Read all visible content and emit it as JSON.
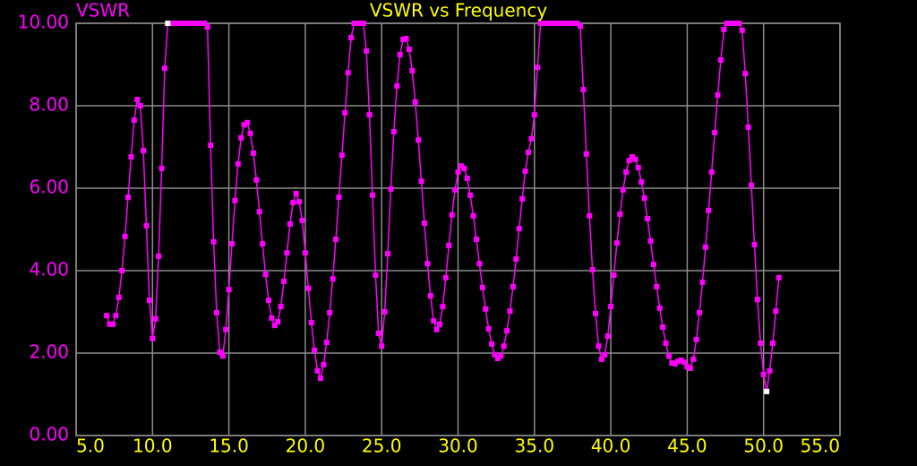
{
  "chart_data": {
    "type": "line",
    "title": "VSWR vs Frequency",
    "y_label": "VSWR",
    "background": "#000000",
    "grid": true,
    "grid_color": "#8c8c8c",
    "title_color": "#ffff00",
    "x_tick_color": "#ffff00",
    "y_tick_color": "#ff00ff",
    "xlim": [
      5,
      55
    ],
    "ylim": [
      0,
      10
    ],
    "xticks": [
      {
        "value": 5,
        "label": "5.0"
      },
      {
        "value": 10,
        "label": "10.0"
      },
      {
        "value": 15,
        "label": "15.0"
      },
      {
        "value": 20,
        "label": "20.0"
      },
      {
        "value": 25,
        "label": "25.0"
      },
      {
        "value": 30,
        "label": "30.0"
      },
      {
        "value": 35,
        "label": "35.0"
      },
      {
        "value": 40,
        "label": "40.0"
      },
      {
        "value": 45,
        "label": "45.0"
      },
      {
        "value": 50,
        "label": "50.0"
      },
      {
        "value": 55,
        "label": "55.0"
      }
    ],
    "yticks": [
      {
        "value": 0,
        "label": "0.00"
      },
      {
        "value": 2,
        "label": "2.00"
      },
      {
        "value": 4,
        "label": "4.00"
      },
      {
        "value": 6,
        "label": "6.00"
      },
      {
        "value": 8,
        "label": "8.00"
      },
      {
        "value": 10,
        "label": "10.00"
      }
    ],
    "x": [
      7,
      7.2,
      7.4,
      7.6,
      7.8,
      8,
      8.2,
      8.4,
      8.6,
      8.8,
      9,
      9.2,
      9.4,
      9.6,
      9.8,
      10,
      10.2,
      10.4,
      10.6,
      10.8,
      11,
      11.2,
      11.4,
      11.6,
      11.8,
      12,
      12.2,
      12.4,
      12.6,
      12.8,
      13,
      13.2,
      13.4,
      13.6,
      13.8,
      14,
      14.2,
      14.4,
      14.6,
      14.8,
      15,
      15.2,
      15.4,
      15.6,
      15.8,
      16,
      16.2,
      16.4,
      16.6,
      16.8,
      17,
      17.2,
      17.4,
      17.6,
      17.8,
      18,
      18.2,
      18.4,
      18.6,
      18.8,
      19,
      19.2,
      19.4,
      19.6,
      19.8,
      20,
      20.2,
      20.4,
      20.6,
      20.8,
      21,
      21.2,
      21.4,
      21.6,
      21.8,
      22,
      22.2,
      22.4,
      22.6,
      22.8,
      23,
      23.2,
      23.4,
      23.6,
      23.8,
      24,
      24.2,
      24.4,
      24.6,
      24.8,
      25,
      25.2,
      25.4,
      25.6,
      25.8,
      26,
      26.2,
      26.4,
      26.6,
      26.8,
      27,
      27.2,
      27.4,
      27.6,
      27.8,
      28,
      28.2,
      28.4,
      28.6,
      28.8,
      29,
      29.2,
      29.4,
      29.6,
      29.8,
      30,
      30.2,
      30.4,
      30.6,
      30.8,
      31,
      31.2,
      31.4,
      31.6,
      31.8,
      32,
      32.2,
      32.4,
      32.6,
      32.8,
      33,
      33.2,
      33.4,
      33.6,
      33.8,
      34,
      34.2,
      34.4,
      34.6,
      34.8,
      35,
      35.2,
      35.4,
      35.6,
      35.8,
      36,
      36.2,
      36.4,
      36.6,
      36.8,
      37,
      37.2,
      37.4,
      37.6,
      37.8,
      38,
      38.2,
      38.4,
      38.6,
      38.8,
      39,
      39.2,
      39.4,
      39.6,
      39.8,
      40,
      40.2,
      40.4,
      40.6,
      40.8,
      41,
      41.2,
      41.4,
      41.6,
      41.8,
      42,
      42.2,
      42.4,
      42.6,
      42.8,
      43,
      43.2,
      43.4,
      43.6,
      43.8,
      44,
      44.2,
      44.4,
      44.6,
      44.8,
      45,
      45.2,
      45.4,
      45.6,
      45.8,
      46,
      46.2,
      46.4,
      46.6,
      46.8,
      47,
      47.2,
      47.4,
      47.6,
      47.8,
      48,
      48.2,
      48.4,
      48.6,
      48.8,
      49,
      49.2,
      49.4,
      49.6,
      49.8,
      50,
      50.2,
      50.4,
      50.6,
      50.8,
      51
    ],
    "series": [
      {
        "name": "VSWR",
        "color": "#ff00ff",
        "values": [
          2.91,
          2.7,
          2.7,
          2.91,
          3.35,
          4.0,
          4.83,
          5.78,
          6.76,
          7.65,
          8.15,
          8.0,
          6.91,
          5.09,
          3.28,
          2.35,
          2.83,
          4.35,
          6.48,
          8.91,
          10,
          10,
          10,
          10,
          10,
          10,
          10,
          10,
          10,
          10,
          10,
          10,
          10,
          9.91,
          7.04,
          4.7,
          2.98,
          2.02,
          1.93,
          2.57,
          3.54,
          4.65,
          5.7,
          6.59,
          7.22,
          7.54,
          7.59,
          7.33,
          6.85,
          6.2,
          5.43,
          4.65,
          3.91,
          3.28,
          2.85,
          2.67,
          2.76,
          3.13,
          3.74,
          4.43,
          5.13,
          5.65,
          5.87,
          5.67,
          5.22,
          4.43,
          3.57,
          2.74,
          2.07,
          1.57,
          1.39,
          1.72,
          2.26,
          2.98,
          3.8,
          4.76,
          5.78,
          6.8,
          7.83,
          8.8,
          9.65,
          10,
          10,
          10,
          10,
          9.33,
          7.78,
          5.83,
          3.89,
          2.48,
          2.17,
          3.0,
          4.41,
          5.98,
          7.37,
          8.48,
          9.24,
          9.61,
          9.63,
          9.37,
          8.85,
          8.09,
          7.17,
          6.17,
          5.15,
          4.17,
          3.39,
          2.78,
          2.57,
          2.7,
          3.13,
          3.83,
          4.61,
          5.35,
          5.96,
          6.39,
          6.54,
          6.48,
          6.24,
          5.83,
          5.33,
          4.76,
          4.17,
          3.59,
          3.07,
          2.59,
          2.22,
          1.96,
          1.87,
          1.93,
          2.17,
          2.54,
          3.02,
          3.61,
          4.28,
          5.02,
          5.74,
          6.41,
          6.87,
          7.2,
          7.78,
          8.93,
          10,
          10,
          10,
          10,
          10,
          10,
          10,
          10,
          10,
          10,
          10,
          10,
          10,
          9.93,
          8.39,
          6.83,
          5.33,
          4.02,
          2.96,
          2.17,
          1.85,
          1.96,
          2.41,
          3.13,
          3.89,
          4.67,
          5.37,
          5.96,
          6.39,
          6.67,
          6.76,
          6.7,
          6.5,
          6.15,
          5.76,
          5.26,
          4.72,
          4.15,
          3.61,
          3.09,
          2.63,
          2.24,
          1.93,
          1.76,
          1.74,
          1.8,
          1.83,
          1.78,
          1.67,
          1.63,
          1.85,
          2.33,
          2.98,
          3.72,
          4.57,
          5.46,
          6.39,
          7.35,
          8.26,
          9.11,
          9.85,
          10,
          10,
          10,
          10,
          10,
          9.83,
          8.78,
          7.48,
          6.07,
          4.63,
          3.3,
          2.24,
          1.48,
          1.07,
          1.57,
          2.24,
          3.02,
          3.83
        ]
      }
    ],
    "markers": {
      "color": "#ffffff",
      "x": [
        11,
        50.2
      ],
      "values": [
        10,
        1.07
      ]
    }
  }
}
